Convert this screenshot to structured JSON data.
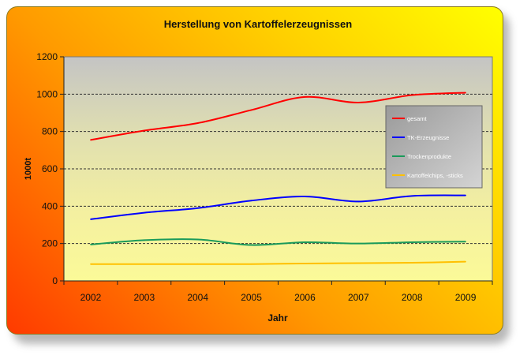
{
  "chart_data": {
    "type": "line",
    "title": "Herstellung von Kartoffelerzeugnissen",
    "xlabel": "Jahr",
    "ylabel": "1000t",
    "categories": [
      "2002",
      "2003",
      "2004",
      "2005",
      "2006",
      "2007",
      "2008",
      "2009"
    ],
    "ylim": [
      0,
      1200
    ],
    "yticks": [
      0,
      200,
      400,
      600,
      800,
      1000,
      1200
    ],
    "grid": true,
    "legend_position": "right",
    "series": [
      {
        "name": "gesamt",
        "color": "#ff0000",
        "values": [
          755,
          805,
          845,
          915,
          985,
          955,
          995,
          1008
        ]
      },
      {
        "name": "TK-Erzeugnisse",
        "color": "#0000ff",
        "values": [
          330,
          365,
          390,
          430,
          452,
          425,
          455,
          458
        ]
      },
      {
        "name": "Trockenprodukte",
        "color": "#1a9a5a",
        "values": [
          195,
          218,
          222,
          192,
          207,
          200,
          207,
          210
        ]
      },
      {
        "name": "Kartoffelchips, -sticks",
        "color": "#ffc000",
        "values": [
          90,
          90,
          90,
          90,
          93,
          95,
          97,
          103
        ]
      }
    ]
  }
}
